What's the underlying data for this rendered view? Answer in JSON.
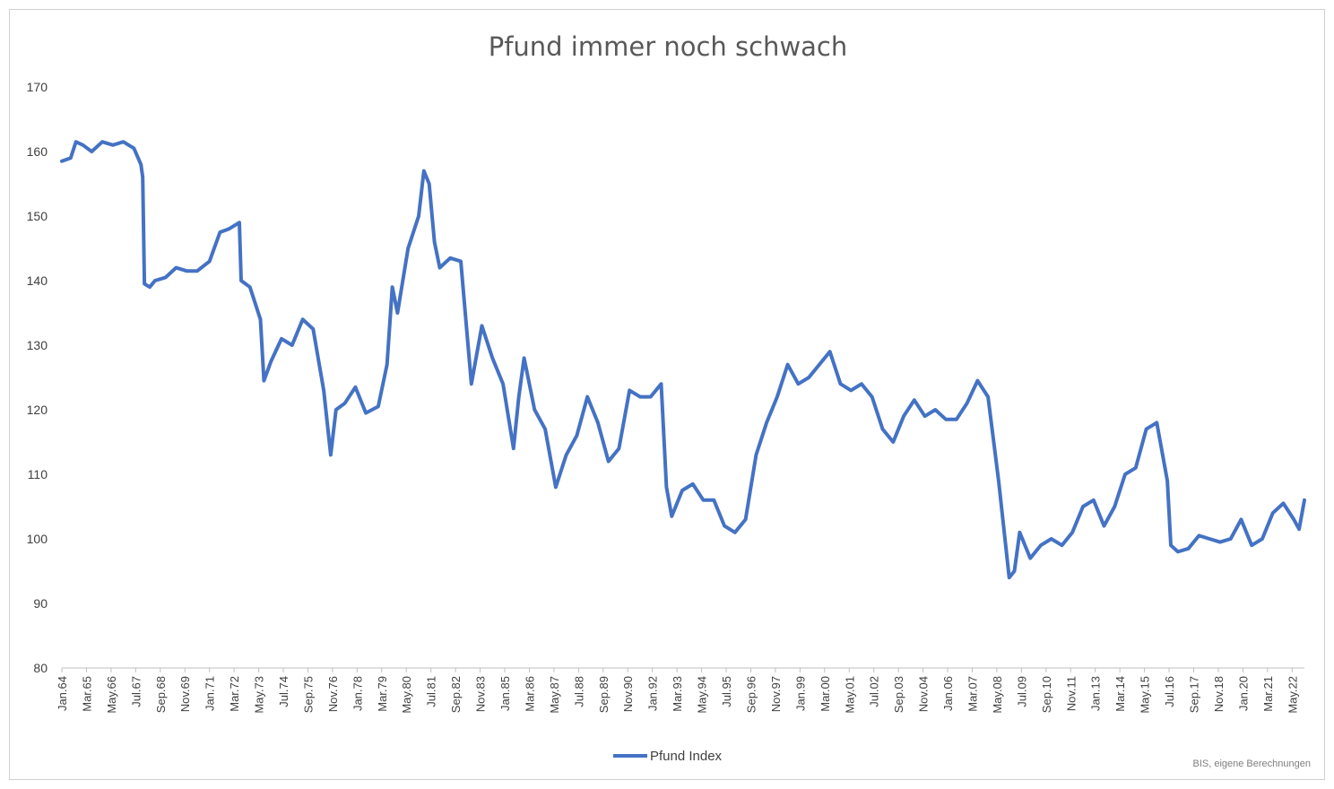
{
  "chart_data": {
    "type": "line",
    "title": "Pfund immer noch schwach",
    "xlabel": "",
    "ylabel": "",
    "ylim": [
      80,
      170
    ],
    "yticks": [
      80,
      90,
      100,
      110,
      120,
      130,
      140,
      150,
      160,
      170
    ],
    "x_start": "Jan.64",
    "x_end": "Dec.22",
    "x_tick_labels": [
      "Jan.64",
      "Mar.65",
      "May.66",
      "Jul.67",
      "Sep.68",
      "Nov.69",
      "Jan.71",
      "Mar.72",
      "May.73",
      "Jul.74",
      "Sep.75",
      "Nov.76",
      "Jan.78",
      "Mar.79",
      "May.80",
      "Jul.81",
      "Sep.82",
      "Nov.83",
      "Jan.85",
      "Mar.86",
      "May.87",
      "Jul.88",
      "Sep.89",
      "Nov.90",
      "Jan.92",
      "Mar.93",
      "May.94",
      "Jul.95",
      "Sep.96",
      "Nov.97",
      "Jan.99",
      "Mar.00",
      "May.01",
      "Jul.02",
      "Sep.03",
      "Nov.04",
      "Jan.06",
      "Mar.07",
      "May.08",
      "Jul.09",
      "Sep.10",
      "Nov.11",
      "Jan.13",
      "Mar.14",
      "May.15",
      "Jul.16",
      "Sep.17",
      "Nov.18",
      "Jan.20",
      "Mar.21",
      "May.22"
    ],
    "grid": false,
    "legend_position": "bottom",
    "line_color": "#4472C4",
    "series": [
      {
        "name": "Pfund Index",
        "points": [
          [
            "Jan.64",
            158.5
          ],
          [
            "Jun.64",
            159
          ],
          [
            "Sep.64",
            161.5
          ],
          [
            "Jan.65",
            161
          ],
          [
            "Jun.65",
            160
          ],
          [
            "Dec.65",
            161.5
          ],
          [
            "Jun.66",
            161
          ],
          [
            "Dec.66",
            161.5
          ],
          [
            "Jun.67",
            160.5
          ],
          [
            "Oct.67",
            158
          ],
          [
            "Nov.67",
            156
          ],
          [
            "Dec.67",
            139.5
          ],
          [
            "Mar.68",
            139
          ],
          [
            "Jun.68",
            140
          ],
          [
            "Dec.68",
            140.5
          ],
          [
            "Jun.69",
            142
          ],
          [
            "Dec.69",
            141.5
          ],
          [
            "Jun.70",
            141.5
          ],
          [
            "Jan.71",
            143
          ],
          [
            "Jul.71",
            147.5
          ],
          [
            "Dec.71",
            148
          ],
          [
            "Jun.72",
            149
          ],
          [
            "Jul.72",
            140
          ],
          [
            "Dec.72",
            139
          ],
          [
            "Jun.73",
            134
          ],
          [
            "Aug.73",
            124.5
          ],
          [
            "Dec.73",
            127.5
          ],
          [
            "Jun.74",
            131
          ],
          [
            "Dec.74",
            130
          ],
          [
            "Jun.75",
            134
          ],
          [
            "Dec.75",
            132.5
          ],
          [
            "Jun.76",
            123
          ],
          [
            "Oct.76",
            113
          ],
          [
            "Jan.77",
            120
          ],
          [
            "Jun.77",
            121
          ],
          [
            "Dec.77",
            123.5
          ],
          [
            "Jun.78",
            119.5
          ],
          [
            "Jan.79",
            120.5
          ],
          [
            "Jun.79",
            127
          ],
          [
            "Sep.79",
            139
          ],
          [
            "Dec.79",
            135
          ],
          [
            "Jun.80",
            145
          ],
          [
            "Dec.80",
            150
          ],
          [
            "Mar.81",
            157
          ],
          [
            "Jun.81",
            155
          ],
          [
            "Sep.81",
            146
          ],
          [
            "Dec.81",
            142
          ],
          [
            "Jun.82",
            143.5
          ],
          [
            "Dec.82",
            143
          ],
          [
            "Jun.83",
            124
          ],
          [
            "Dec.83",
            133
          ],
          [
            "Jun.84",
            128
          ],
          [
            "Dec.84",
            124
          ],
          [
            "Jun.85",
            114
          ],
          [
            "Sep.85",
            122
          ],
          [
            "Dec.85",
            128
          ],
          [
            "Jun.86",
            120
          ],
          [
            "Dec.86",
            117
          ],
          [
            "Jun.87",
            108
          ],
          [
            "Dec.87",
            113
          ],
          [
            "Jun.88",
            116
          ],
          [
            "Dec.88",
            122
          ],
          [
            "Jun.89",
            118
          ],
          [
            "Dec.89",
            112
          ],
          [
            "Jun.90",
            114
          ],
          [
            "Dec.90",
            123
          ],
          [
            "Jun.91",
            122
          ],
          [
            "Dec.91",
            122
          ],
          [
            "Jun.92",
            124
          ],
          [
            "Sep.92",
            108
          ],
          [
            "Dec.92",
            103.5
          ],
          [
            "Jun.93",
            107.5
          ],
          [
            "Dec.93",
            108.5
          ],
          [
            "Jun.94",
            106
          ],
          [
            "Dec.94",
            106
          ],
          [
            "Jun.95",
            102
          ],
          [
            "Dec.95",
            101
          ],
          [
            "Jun.96",
            103
          ],
          [
            "Dec.96",
            113
          ],
          [
            "Jun.97",
            118
          ],
          [
            "Dec.97",
            122
          ],
          [
            "Jun.98",
            127
          ],
          [
            "Dec.98",
            124
          ],
          [
            "Jun.99",
            125
          ],
          [
            "Dec.99",
            127
          ],
          [
            "Jun.00",
            129
          ],
          [
            "Dec.00",
            124
          ],
          [
            "Jun.01",
            123
          ],
          [
            "Dec.01",
            124
          ],
          [
            "Jun.02",
            122
          ],
          [
            "Dec.02",
            117
          ],
          [
            "Jun.03",
            115
          ],
          [
            "Dec.03",
            119
          ],
          [
            "Jun.04",
            121.5
          ],
          [
            "Dec.04",
            119
          ],
          [
            "Jun.05",
            120
          ],
          [
            "Dec.05",
            118.5
          ],
          [
            "Jun.06",
            118.5
          ],
          [
            "Dec.06",
            121
          ],
          [
            "Jun.07",
            124.5
          ],
          [
            "Dec.07",
            122
          ],
          [
            "Jun.08",
            109
          ],
          [
            "Dec.08",
            94
          ],
          [
            "Mar.09",
            95
          ],
          [
            "Jun.09",
            101
          ],
          [
            "Dec.09",
            97
          ],
          [
            "Jun.10",
            99
          ],
          [
            "Dec.10",
            100
          ],
          [
            "Jun.11",
            99
          ],
          [
            "Dec.11",
            101
          ],
          [
            "Jun.12",
            105
          ],
          [
            "Dec.12",
            106
          ],
          [
            "Jun.13",
            102
          ],
          [
            "Dec.13",
            105
          ],
          [
            "Jun.14",
            110
          ],
          [
            "Dec.14",
            111
          ],
          [
            "Jun.15",
            117
          ],
          [
            "Dec.15",
            118
          ],
          [
            "Jun.16",
            109
          ],
          [
            "Aug.16",
            99
          ],
          [
            "Dec.16",
            98
          ],
          [
            "Jun.17",
            98.5
          ],
          [
            "Dec.17",
            100.5
          ],
          [
            "Jun.18",
            100
          ],
          [
            "Dec.18",
            99.5
          ],
          [
            "Jun.19",
            100
          ],
          [
            "Dec.19",
            103
          ],
          [
            "Jun.20",
            99
          ],
          [
            "Dec.20",
            100
          ],
          [
            "Jun.21",
            104
          ],
          [
            "Dec.21",
            105.5
          ],
          [
            "Jun.22",
            103
          ],
          [
            "Sep.22",
            101.5
          ],
          [
            "Dec.22",
            106
          ]
        ]
      }
    ],
    "source_note": "BIS, eigene Berechnungen"
  }
}
